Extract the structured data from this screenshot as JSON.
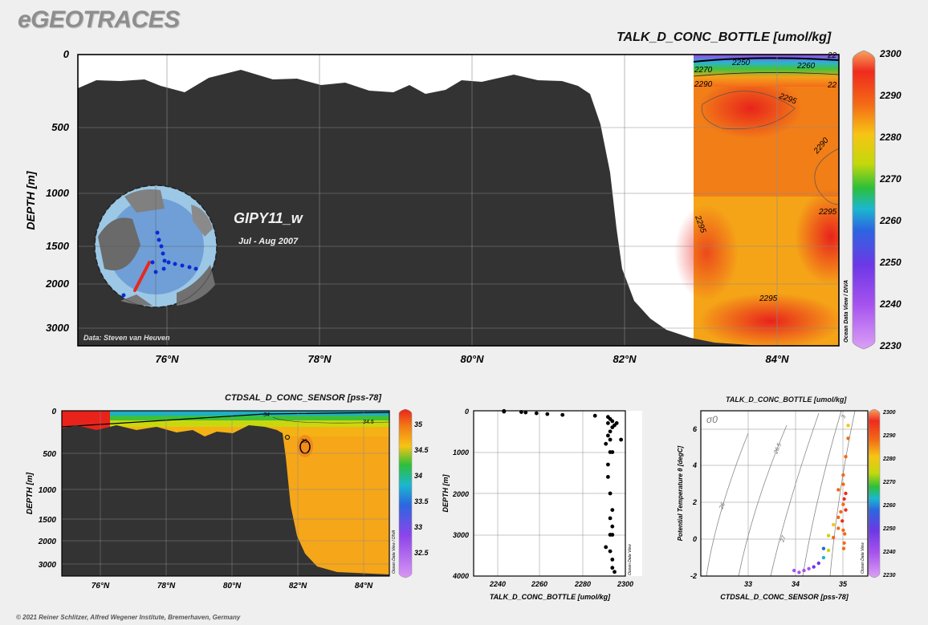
{
  "brand": "eGEOTRACES",
  "credit": "© 2021 Reiner Schlitzer, Alfred Wegener Institute, Bremerhaven, Germany",
  "main_section": {
    "title": "TALK_D_CONC_BOTTLE [umol/kg]",
    "cruise": "GIPY11_w",
    "dates": "Jul - Aug 2007",
    "data_source": "Data: Steven van Heuven",
    "watermark": "Ocean Data View / DIVA",
    "ylabel": "DEPTH [m]",
    "yticks": [
      "0",
      "500",
      "1000",
      "1500",
      "2000",
      "3000"
    ],
    "xticks": [
      "76°N",
      "78°N",
      "80°N",
      "82°N",
      "84°N"
    ],
    "colorbar": [
      "2300",
      "2290",
      "2280",
      "2270",
      "2260",
      "2250",
      "2240",
      "2230"
    ],
    "contours": [
      "2250",
      "2260",
      "2270",
      "2290",
      "2295",
      "2290",
      "2295",
      "2295",
      "2295",
      "22",
      "22"
    ]
  },
  "salinity_section": {
    "title": "CTDSAL_D_CONC_SENSOR [pss-78]",
    "ylabel": "DEPTH [m]",
    "yticks": [
      "0",
      "500",
      "1000",
      "1500",
      "2000",
      "3000"
    ],
    "xticks": [
      "76°N",
      "78°N",
      "80°N",
      "82°N",
      "84°N"
    ],
    "colorbar": [
      "35",
      "34.5",
      "34",
      "33.5",
      "33",
      "32.5"
    ],
    "contours": [
      "34",
      "34.5",
      "35"
    ],
    "watermark": "Ocean Data View / DIVA"
  },
  "profile": {
    "ylabel": "DEPTH [m]",
    "xlabel": "TALK_D_CONC_BOTTLE [umol/kg]",
    "yticks": [
      "0",
      "1000",
      "2000",
      "3000",
      "4000"
    ],
    "xticks": [
      "2240",
      "2260",
      "2280",
      "2300"
    ],
    "watermark": "Ocean Data View"
  },
  "ts_plot": {
    "title": "TALK_D_CONC_BOTTLE [umol/kg]",
    "ylabel": "Potential Temperature θ [degC]",
    "xlabel": "CTDSAL_D_CONC_SENSOR [pss-78]",
    "yticks": [
      "6",
      "4",
      "2",
      "0",
      "-2"
    ],
    "xticks": [
      "33",
      "34",
      "35"
    ],
    "sigma_label": "σ0",
    "isopycnals": [
      "26",
      "26.5",
      "27",
      "3"
    ],
    "colorbar": [
      "2300",
      "2290",
      "2280",
      "2270",
      "2260",
      "2250",
      "2240",
      "2230"
    ],
    "watermark": "Ocean Data View"
  },
  "chart_data": [
    {
      "type": "scatter",
      "title": "",
      "xlabel": "TALK_D_CONC_BOTTLE [umol/kg]",
      "ylabel": "DEPTH [m]",
      "xlim": [
        2230,
        2300
      ],
      "ylim": [
        4000,
        0
      ],
      "x": [
        2244,
        2244,
        2252,
        2254,
        2259,
        2264,
        2271,
        2286,
        2292,
        2293,
        2294,
        2292,
        2295,
        2294,
        2293,
        2292,
        2293,
        2291,
        2294,
        2293,
        2292,
        2292,
        2293,
        2294,
        2293,
        2294,
        2293,
        2294,
        2291,
        2293,
        2294,
        2294,
        2295,
        2296,
        2298
      ],
      "y": [
        5,
        20,
        30,
        40,
        60,
        80,
        100,
        120,
        150,
        200,
        250,
        300,
        350,
        400,
        500,
        600,
        700,
        800,
        1000,
        1000,
        1300,
        1600,
        2000,
        2400,
        2600,
        2800,
        3000,
        3000,
        3300,
        3400,
        3600,
        3800,
        3900,
        300,
        700
      ]
    },
    {
      "type": "scatter",
      "title": "TALK_D_CONC_BOTTLE [umol/kg]",
      "xlabel": "CTDSAL_D_CONC_SENSOR [pss-78]",
      "ylabel": "Potential Temperature θ [degC]",
      "xlim": [
        32,
        35.4
      ],
      "ylim": [
        -2,
        7
      ],
      "x": [
        34.0,
        34.1,
        34.2,
        33.9,
        34.5,
        34.6,
        34.7,
        34.8,
        34.85,
        34.9,
        34.92,
        34.95,
        34.9,
        34.88,
        34.9,
        34.92,
        34.91,
        34.8,
        34.7,
        34.6,
        34.4,
        34.3,
        34.5,
        34.8,
        34.9,
        34.95,
        35.0,
        35.0,
        34.95,
        34.93
      ],
      "y": [
        -1.8,
        -1.7,
        -1.6,
        -1.7,
        -0.5,
        0.2,
        0.8,
        1.2,
        1.5,
        1.9,
        2.2,
        2.5,
        3.0,
        1.0,
        0.5,
        -0.2,
        -0.5,
        0.6,
        0.1,
        -0.6,
        -1.3,
        -1.5,
        -1.0,
        2.7,
        3.5,
        4.5,
        5.5,
        6.2,
        1.6,
        0.3
      ],
      "color_values": [
        2245,
        2246,
        2248,
        2244,
        2262,
        2275,
        2283,
        2290,
        2293,
        2295,
        2296,
        2297,
        2293,
        2296,
        2295,
        2294,
        2295,
        2292,
        2288,
        2280,
        2255,
        2250,
        2265,
        2294,
        2292,
        2290,
        2288,
        2287,
        2296,
        2295
      ],
      "colorbar_range": [
        2230,
        2300
      ]
    }
  ]
}
